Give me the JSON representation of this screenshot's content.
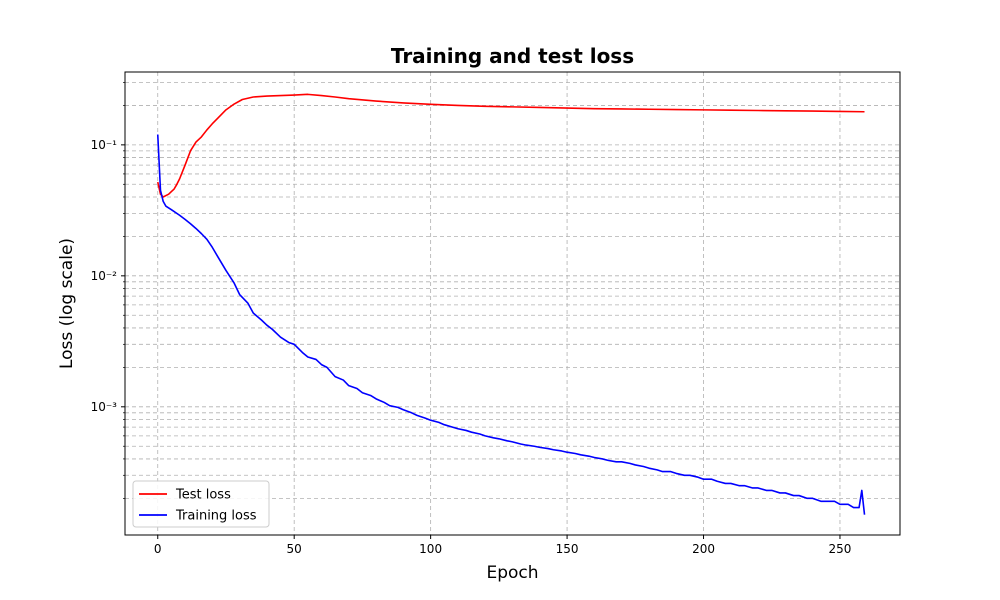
{
  "chart_data": {
    "type": "line",
    "title": "Training and test loss",
    "xlabel": "Epoch",
    "ylabel": "Loss (log scale)",
    "xlim": [
      -12,
      272
    ],
    "ylim": [
      0.000105,
      0.36
    ],
    "yscale": "log",
    "grid": true,
    "grid_style": "dashed",
    "legend_position": "lower-left",
    "x_ticks": [
      0,
      50,
      100,
      150,
      200,
      250
    ],
    "x_tick_labels": [
      "0",
      "50",
      "100",
      "150",
      "200",
      "250"
    ],
    "y_ticks": [
      0.001,
      0.01,
      0.1
    ],
    "y_tick_labels": [
      "10⁻³",
      "10⁻²",
      "10⁻¹"
    ],
    "series": [
      {
        "name": "Test loss",
        "color": "#ff0000",
        "x": [
          0,
          1,
          2,
          3,
          4,
          5,
          6,
          7,
          8,
          10,
          12,
          14,
          16,
          18,
          20,
          22,
          25,
          28,
          31,
          35,
          40,
          45,
          50,
          55,
          60,
          65,
          70,
          80,
          90,
          100,
          110,
          120,
          130,
          140,
          150,
          160,
          170,
          180,
          190,
          200,
          210,
          220,
          230,
          240,
          250,
          259
        ],
        "y": [
          0.052,
          0.042,
          0.04,
          0.041,
          0.042,
          0.044,
          0.046,
          0.05,
          0.055,
          0.07,
          0.09,
          0.105,
          0.115,
          0.13,
          0.145,
          0.16,
          0.185,
          0.205,
          0.222,
          0.232,
          0.236,
          0.238,
          0.24,
          0.243,
          0.238,
          0.232,
          0.225,
          0.216,
          0.209,
          0.204,
          0.2,
          0.197,
          0.195,
          0.193,
          0.191,
          0.189,
          0.188,
          0.187,
          0.186,
          0.185,
          0.184,
          0.183,
          0.182,
          0.181,
          0.18,
          0.179
        ]
      },
      {
        "name": "Training loss",
        "color": "#0000ff",
        "x": [
          0,
          1,
          2,
          3,
          5,
          8,
          10,
          12,
          14,
          16,
          18,
          20,
          22,
          25,
          28,
          30,
          33,
          35,
          38,
          40,
          42,
          45,
          48,
          50,
          53,
          55,
          58,
          60,
          62,
          65,
          68,
          70,
          73,
          75,
          78,
          80,
          83,
          85,
          88,
          90,
          93,
          95,
          98,
          100,
          103,
          105,
          108,
          110,
          113,
          115,
          118,
          120,
          123,
          125,
          128,
          130,
          133,
          135,
          138,
          140,
          143,
          145,
          148,
          150,
          153,
          155,
          158,
          160,
          163,
          165,
          168,
          170,
          173,
          175,
          178,
          180,
          183,
          185,
          188,
          190,
          193,
          195,
          198,
          200,
          203,
          205,
          208,
          210,
          213,
          215,
          218,
          220,
          223,
          225,
          228,
          230,
          233,
          235,
          238,
          240,
          243,
          245,
          248,
          250,
          253,
          255,
          257,
          258,
          259
        ],
        "y": [
          0.12,
          0.045,
          0.037,
          0.034,
          0.032,
          0.029,
          0.027,
          0.025,
          0.023,
          0.021,
          0.019,
          0.0165,
          0.014,
          0.011,
          0.0088,
          0.0072,
          0.0062,
          0.0052,
          0.0046,
          0.0042,
          0.0039,
          0.0034,
          0.0031,
          0.003,
          0.0026,
          0.0024,
          0.0023,
          0.0021,
          0.002,
          0.0017,
          0.0016,
          0.00145,
          0.00138,
          0.00128,
          0.00122,
          0.00115,
          0.00108,
          0.00102,
          0.00099,
          0.00095,
          0.0009,
          0.00086,
          0.00082,
          0.00079,
          0.00076,
          0.00073,
          0.0007,
          0.00068,
          0.00066,
          0.00064,
          0.00062,
          0.0006,
          0.00058,
          0.00057,
          0.00055,
          0.00054,
          0.00052,
          0.00051,
          0.0005,
          0.00049,
          0.00048,
          0.00047,
          0.00046,
          0.00045,
          0.00044,
          0.00043,
          0.00042,
          0.00041,
          0.0004,
          0.00039,
          0.00038,
          0.00038,
          0.00037,
          0.00036,
          0.00035,
          0.00034,
          0.00033,
          0.00032,
          0.00032,
          0.00031,
          0.0003,
          0.0003,
          0.00029,
          0.00028,
          0.00028,
          0.00027,
          0.00026,
          0.00026,
          0.00025,
          0.00025,
          0.00024,
          0.00024,
          0.00023,
          0.00023,
          0.00022,
          0.00022,
          0.00021,
          0.00021,
          0.0002,
          0.0002,
          0.00019,
          0.00019,
          0.00019,
          0.00018,
          0.00018,
          0.00017,
          0.00017,
          0.00023,
          0.00015
        ]
      }
    ]
  }
}
